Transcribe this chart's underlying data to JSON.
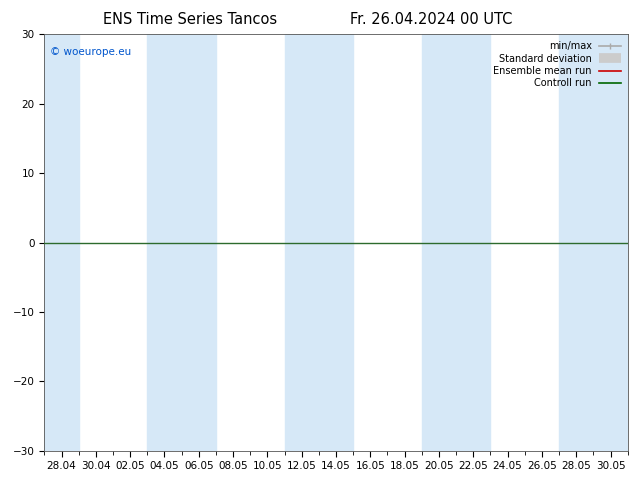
{
  "title_left": "ENS Time Series Tancos",
  "title_right": "Fr. 26.04.2024 00 UTC",
  "ylim": [
    -30,
    30
  ],
  "yticks": [
    -30,
    -20,
    -10,
    0,
    10,
    20,
    30
  ],
  "x_labels": [
    "28.04",
    "30.04",
    "02.05",
    "04.05",
    "06.05",
    "08.05",
    "10.05",
    "12.05",
    "14.05",
    "16.05",
    "18.05",
    "20.05",
    "22.05",
    "24.05",
    "26.05",
    "28.05",
    "30.05"
  ],
  "background_color": "#ffffff",
  "plot_bg_color": "#ffffff",
  "shaded_color": "#d6e8f7",
  "zero_line_color": "#2d6b2d",
  "watermark": "© woeurope.eu",
  "watermark_color": "#0055cc",
  "legend_items": [
    {
      "label": "min/max",
      "color": "#aaaaaa",
      "lw": 1.2
    },
    {
      "label": "Standard deviation",
      "color": "#cccccc",
      "lw": 7
    },
    {
      "label": "Ensemble mean run",
      "color": "#cc0000",
      "lw": 1.2
    },
    {
      "label": "Controll run",
      "color": "#006600",
      "lw": 1.2
    }
  ],
  "tick_label_fontsize": 7.5,
  "title_fontsize": 10.5
}
